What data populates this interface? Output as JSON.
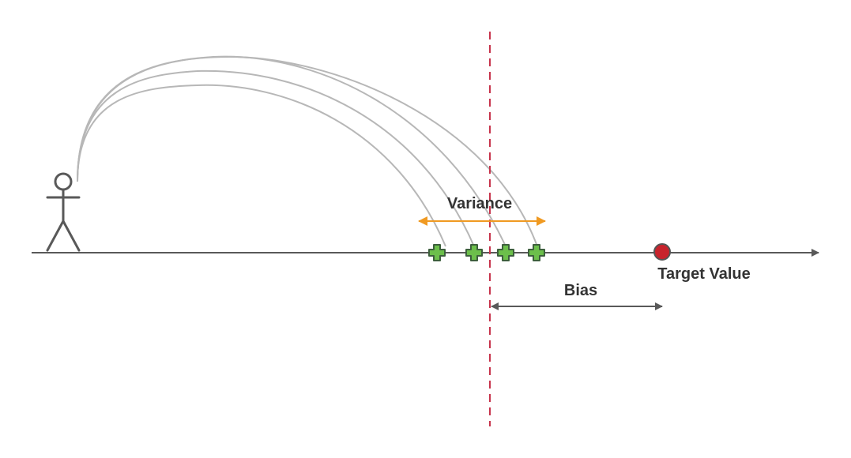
{
  "labels": {
    "variance": "Variance",
    "bias": "Bias",
    "target": "Target Value"
  },
  "colors": {
    "axis": "#595959",
    "trajectory": "#b7b7b7",
    "person": "#595959",
    "variance_arrow": "#f09a22",
    "bias_arrow": "#595959",
    "mean_line": "#c7344c",
    "hit_fill": "#6cbf4b",
    "hit_stroke": "#3d5f3d",
    "target_fill": "#c8232c",
    "target_stroke": "#555555",
    "text": "#333333"
  },
  "icons": {
    "person": "stick-figure-icon",
    "hit": "green-cross-marker-icon",
    "target": "red-dot-icon"
  }
}
